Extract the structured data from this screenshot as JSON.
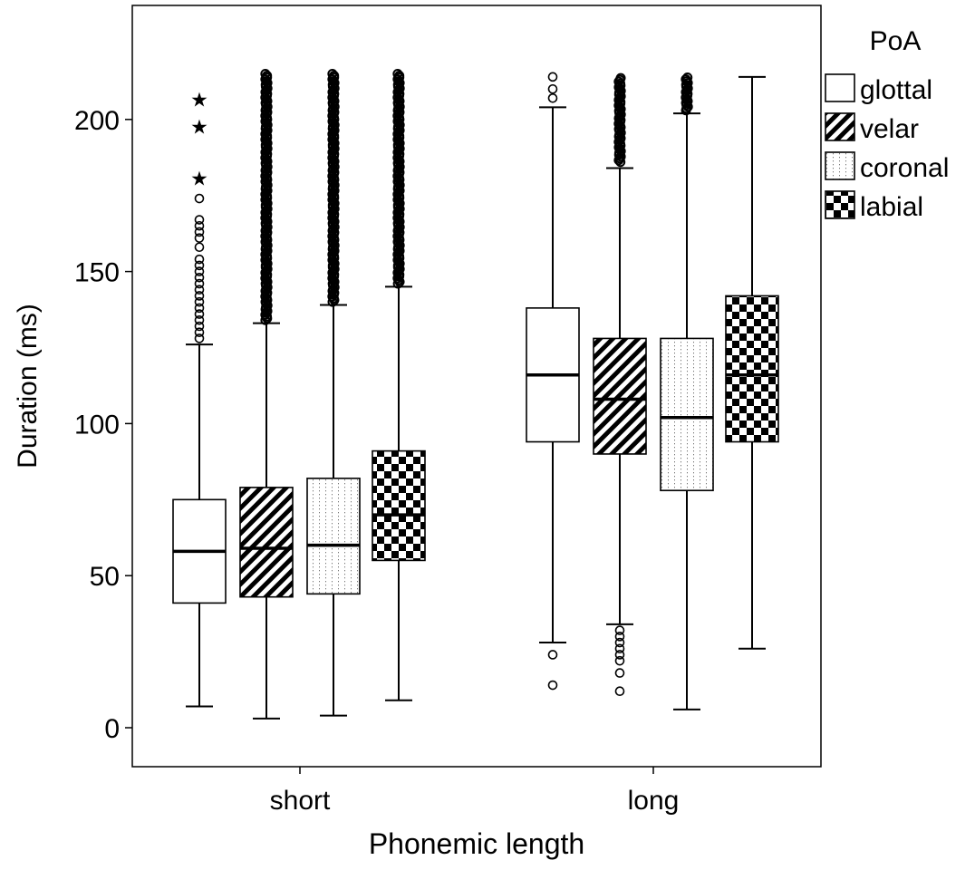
{
  "chart_data": {
    "type": "boxplot",
    "xlabel": "Phonemic length",
    "ylabel": "Duration (ms)",
    "ylim": [
      -13,
      237
    ],
    "yticks": [
      0,
      50,
      100,
      150,
      200
    ],
    "categories": [
      "short",
      "long"
    ],
    "legend": {
      "title": "PoA",
      "placement": "right",
      "entries": [
        {
          "name": "glottal",
          "pattern": "plain"
        },
        {
          "name": "velar",
          "pattern": "diagonal-stripes"
        },
        {
          "name": "coronal",
          "pattern": "dots"
        },
        {
          "name": "labial",
          "pattern": "checker"
        }
      ]
    },
    "series": [
      {
        "name": "glottal",
        "boxes": [
          {
            "category": "short",
            "whisker_low": 7,
            "q1": 41,
            "median": 58,
            "q3": 75,
            "whisker_high": 126,
            "outliers_high": [
              128,
              130,
              132,
              134,
              136,
              138,
              140,
              142,
              144,
              146,
              148,
              150,
              152,
              154,
              158,
              161,
              163,
              165,
              167,
              174
            ],
            "outliers_low": [],
            "extremes_high": [
              181,
              198,
              207
            ]
          },
          {
            "category": "long",
            "whisker_low": 28,
            "q1": 94,
            "median": 116,
            "q3": 138,
            "whisker_high": 204,
            "outliers_high": [
              207,
              210,
              214
            ],
            "outliers_low": [
              24,
              14
            ],
            "extremes_high": []
          }
        ]
      },
      {
        "name": "velar",
        "boxes": [
          {
            "category": "short",
            "whisker_low": 3,
            "q1": 43,
            "median": 59,
            "q3": 79,
            "whisker_high": 133,
            "outliers_dense_range": [
              134,
              215
            ],
            "outliers_high": [],
            "outliers_low": [],
            "extremes_high": []
          },
          {
            "category": "long",
            "whisker_low": 34,
            "q1": 90,
            "median": 108,
            "q3": 128,
            "whisker_high": 184,
            "outliers_dense_range": [
              186,
              214
            ],
            "outliers_high": [],
            "outliers_low": [
              32,
              30,
              28,
              26,
              24,
              22,
              18,
              12
            ],
            "extremes_high": []
          }
        ]
      },
      {
        "name": "coronal",
        "boxes": [
          {
            "category": "short",
            "whisker_low": 4,
            "q1": 44,
            "median": 60,
            "q3": 82,
            "whisker_high": 139,
            "outliers_dense_range": [
              140,
              215
            ],
            "outliers_high": [],
            "outliers_low": [],
            "extremes_high": []
          },
          {
            "category": "long",
            "whisker_low": 6,
            "q1": 78,
            "median": 102,
            "q3": 128,
            "whisker_high": 202,
            "outliers_dense_range": [
              203,
              214
            ],
            "outliers_high": [],
            "outliers_low": [],
            "extremes_high": []
          }
        ]
      },
      {
        "name": "labial",
        "boxes": [
          {
            "category": "short",
            "whisker_low": 9,
            "q1": 55,
            "median": 70,
            "q3": 91,
            "whisker_high": 145,
            "outliers_dense_range": [
              146,
              215
            ],
            "outliers_high": [],
            "outliers_low": [],
            "extremes_high": []
          },
          {
            "category": "long",
            "whisker_low": 26,
            "q1": 94,
            "median": 116,
            "q3": 142,
            "whisker_high": 214,
            "outliers_high": [],
            "outliers_low": [],
            "extremes_high": []
          }
        ]
      }
    ]
  }
}
